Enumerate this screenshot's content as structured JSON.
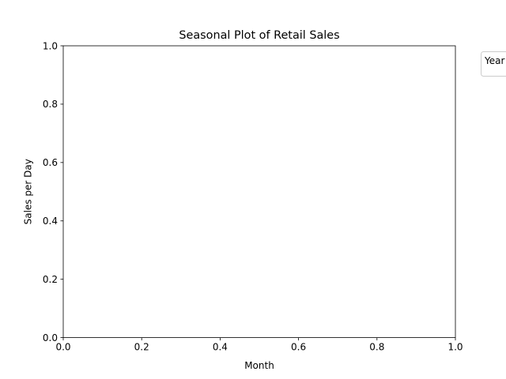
{
  "chart_data": {
    "type": "line",
    "title": "Seasonal Plot of Retail Sales",
    "xlabel": "Month",
    "ylabel": "Sales per Day",
    "xlim": [
      0.0,
      1.0
    ],
    "ylim": [
      0.0,
      1.0
    ],
    "x_ticks": [
      "0.0",
      "0.2",
      "0.4",
      "0.6",
      "0.8",
      "1.0"
    ],
    "y_ticks": [
      "0.0",
      "0.2",
      "0.4",
      "0.6",
      "0.8",
      "1.0"
    ],
    "series": [],
    "grid": false,
    "legend": {
      "title": "Year",
      "placement": "outside top-right",
      "entries": []
    }
  }
}
